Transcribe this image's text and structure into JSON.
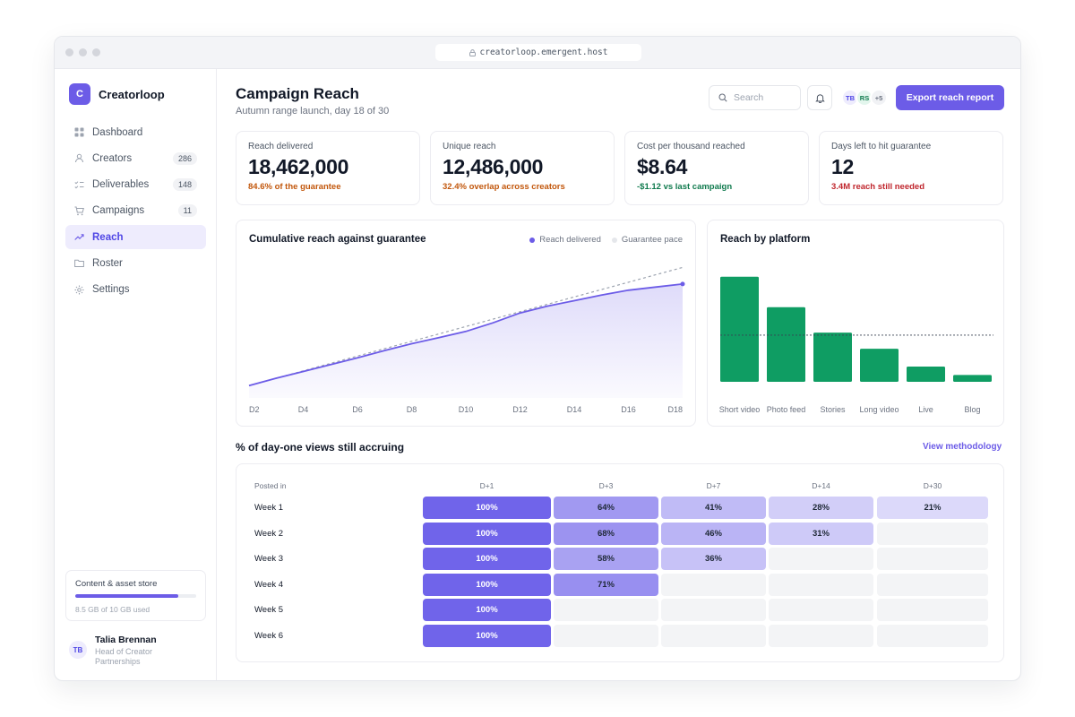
{
  "browser": {
    "url": "creatorloop.emergent.host"
  },
  "brand": {
    "initial": "C",
    "name": "Creatorloop"
  },
  "nav": [
    {
      "label": "Dashboard",
      "icon": "grid-icon",
      "count": null,
      "active": false
    },
    {
      "label": "Creators",
      "icon": "user-icon",
      "count": "286",
      "active": false
    },
    {
      "label": "Deliverables",
      "icon": "checklist-icon",
      "count": "148",
      "active": false
    },
    {
      "label": "Campaigns",
      "icon": "cart-icon",
      "count": "11",
      "active": false
    },
    {
      "label": "Reach",
      "icon": "trend-icon",
      "count": null,
      "active": true
    },
    {
      "label": "Roster",
      "icon": "folder-icon",
      "count": null,
      "active": false
    },
    {
      "label": "Settings",
      "icon": "gear-icon",
      "count": null,
      "active": false
    }
  ],
  "storage": {
    "title": "Content & asset store",
    "used_text": "8.5 GB of 10 GB used",
    "fraction_used": 0.85,
    "color": "#6c5ce7"
  },
  "user": {
    "initials": "TB",
    "name": "Talia Brennan",
    "role": "Head of Creator Partnerships"
  },
  "header": {
    "title": "Campaign Reach",
    "subtitle": "Autumn range launch, day 18 of 30",
    "search_placeholder": "Search",
    "avatars": [
      "TB",
      "RS",
      "+5"
    ],
    "export_label": "Export reach report"
  },
  "kpis": [
    {
      "label": "Reach delivered",
      "value": "18,462,000",
      "note": "84.6% of the guarantee",
      "note_color": "#c2570c"
    },
    {
      "label": "Unique reach",
      "value": "12,486,000",
      "note": "32.4% overlap across creators",
      "note_color": "#c2570c"
    },
    {
      "label": "Cost per thousand reached",
      "value": "$8.64",
      "note": "-$1.12 vs last campaign",
      "note_color": "#0f7a4d"
    },
    {
      "label": "Days left to hit guarantee",
      "value": "12",
      "note": "3.4M reach still needed",
      "note_color": "#c0262d"
    }
  ],
  "colors": {
    "accent": "#6c5ce7",
    "green": "#0f9d63"
  },
  "chart_data": [
    {
      "type": "area",
      "title": "Cumulative reach against guarantee",
      "legend_position": "top-right",
      "x": [
        "D2",
        "D3",
        "D4",
        "D5",
        "D6",
        "D7",
        "D8",
        "D9",
        "D10",
        "D11",
        "D12",
        "D13",
        "D14",
        "D15",
        "D16",
        "D17",
        "D18"
      ],
      "x_tick_labels": [
        "D2",
        "D4",
        "D6",
        "D8",
        "D10",
        "D12",
        "D14",
        "D16",
        "D18"
      ],
      "ylim": [
        0,
        23
      ],
      "series": [
        {
          "name": "Reach delivered",
          "values": [
            2.0,
            3.2,
            4.3,
            5.4,
            6.5,
            7.7,
            8.8,
            9.8,
            10.8,
            12.2,
            13.8,
            14.9,
            15.8,
            16.7,
            17.5,
            18.0,
            18.5
          ],
          "color": "#6c5ce7",
          "style": "solid-area"
        },
        {
          "name": "Guarantee pace",
          "values": [
            2.0,
            3.2,
            4.4,
            5.6,
            6.8,
            8.0,
            9.2,
            10.4,
            11.6,
            12.8,
            14.0,
            15.2,
            16.4,
            17.6,
            18.8,
            20.0,
            21.2
          ],
          "color": "#9ca3af",
          "style": "dashed"
        }
      ]
    },
    {
      "type": "bar",
      "title": "Reach by platform",
      "categories": [
        "Short video",
        "Photo feed",
        "Stories",
        "Long video",
        "Live",
        "Blog"
      ],
      "values": [
        6.2,
        4.4,
        2.9,
        1.95,
        0.9,
        0.4
      ],
      "reference_line": 2.75,
      "ylim": [
        0,
        7.4
      ],
      "bar_color": "#0f9d63"
    },
    {
      "type": "heatmap",
      "title": "% of day-one views still accruing",
      "link_label": "View methodology",
      "row_header": "Posted in",
      "columns": [
        "D+1",
        "D+3",
        "D+7",
        "D+14",
        "D+30"
      ],
      "rows": [
        {
          "label": "Week 1",
          "values": [
            100,
            64,
            41,
            28,
            21
          ]
        },
        {
          "label": "Week 2",
          "values": [
            100,
            68,
            46,
            31,
            null
          ]
        },
        {
          "label": "Week 3",
          "values": [
            100,
            58,
            36,
            null,
            null
          ]
        },
        {
          "label": "Week 4",
          "values": [
            100,
            71,
            null,
            null,
            null
          ]
        },
        {
          "label": "Week 5",
          "values": [
            100,
            null,
            null,
            null,
            null
          ]
        },
        {
          "label": "Week 6",
          "values": [
            100,
            null,
            null,
            null,
            null
          ]
        }
      ]
    }
  ]
}
